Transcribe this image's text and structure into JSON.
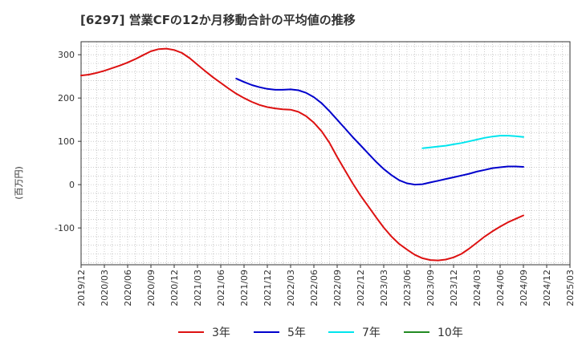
{
  "chart_data": {
    "type": "line",
    "title": "[6297]  営業CFの12か月移動合計の平均値の推移",
    "ylabel": "(百万円)",
    "xlabel": "",
    "ylim": [
      -185,
      330
    ],
    "yticks": [
      -100,
      0,
      100,
      200,
      300
    ],
    "xticks": [
      "2019/12",
      "2020/03",
      "2020/06",
      "2020/09",
      "2020/12",
      "2021/03",
      "2021/06",
      "2021/09",
      "2021/12",
      "2022/03",
      "2022/06",
      "2022/09",
      "2022/12",
      "2023/03",
      "2023/06",
      "2023/09",
      "2023/12",
      "2024/03",
      "2024/06",
      "2024/09",
      "2024/12",
      "2025/03"
    ],
    "grid": true,
    "legend_position": "bottom",
    "series": [
      {
        "name": "3年",
        "color": "#dd1111",
        "points": [
          [
            "2019/12",
            252
          ],
          [
            "2020/01",
            254
          ],
          [
            "2020/02",
            258
          ],
          [
            "2020/03",
            263
          ],
          [
            "2020/04",
            269
          ],
          [
            "2020/05",
            275
          ],
          [
            "2020/06",
            282
          ],
          [
            "2020/07",
            290
          ],
          [
            "2020/08",
            299
          ],
          [
            "2020/09",
            308
          ],
          [
            "2020/10",
            313
          ],
          [
            "2020/11",
            314
          ],
          [
            "2020/12",
            311
          ],
          [
            "2021/01",
            304
          ],
          [
            "2021/02",
            292
          ],
          [
            "2021/03",
            277
          ],
          [
            "2021/04",
            262
          ],
          [
            "2021/05",
            248
          ],
          [
            "2021/06",
            235
          ],
          [
            "2021/07",
            222
          ],
          [
            "2021/08",
            210
          ],
          [
            "2021/09",
            200
          ],
          [
            "2021/10",
            191
          ],
          [
            "2021/11",
            184
          ],
          [
            "2021/12",
            179
          ],
          [
            "2022/01",
            176
          ],
          [
            "2022/02",
            174
          ],
          [
            "2022/03",
            173
          ],
          [
            "2022/04",
            168
          ],
          [
            "2022/05",
            158
          ],
          [
            "2022/06",
            143
          ],
          [
            "2022/07",
            123
          ],
          [
            "2022/08",
            97
          ],
          [
            "2022/09",
            64
          ],
          [
            "2022/10",
            33
          ],
          [
            "2022/11",
            3
          ],
          [
            "2022/12",
            -25
          ],
          [
            "2023/01",
            -50
          ],
          [
            "2023/02",
            -75
          ],
          [
            "2023/03",
            -99
          ],
          [
            "2023/04",
            -120
          ],
          [
            "2023/05",
            -137
          ],
          [
            "2023/06",
            -150
          ],
          [
            "2023/07",
            -162
          ],
          [
            "2023/08",
            -170
          ],
          [
            "2023/09",
            -174
          ],
          [
            "2023/10",
            -175
          ],
          [
            "2023/11",
            -173
          ],
          [
            "2023/12",
            -168
          ],
          [
            "2024/01",
            -160
          ],
          [
            "2024/02",
            -148
          ],
          [
            "2024/03",
            -134
          ],
          [
            "2024/04",
            -120
          ],
          [
            "2024/05",
            -108
          ],
          [
            "2024/06",
            -97
          ],
          [
            "2024/07",
            -87
          ],
          [
            "2024/08",
            -79
          ],
          [
            "2024/09",
            -71
          ]
        ]
      },
      {
        "name": "5年",
        "color": "#0000cc",
        "points": [
          [
            "2021/08",
            245
          ],
          [
            "2021/09",
            237
          ],
          [
            "2021/10",
            230
          ],
          [
            "2021/11",
            225
          ],
          [
            "2021/12",
            221
          ],
          [
            "2022/01",
            219
          ],
          [
            "2022/02",
            219
          ],
          [
            "2022/03",
            220
          ],
          [
            "2022/04",
            218
          ],
          [
            "2022/05",
            212
          ],
          [
            "2022/06",
            202
          ],
          [
            "2022/07",
            188
          ],
          [
            "2022/08",
            170
          ],
          [
            "2022/09",
            150
          ],
          [
            "2022/10",
            130
          ],
          [
            "2022/11",
            110
          ],
          [
            "2022/12",
            91
          ],
          [
            "2023/01",
            72
          ],
          [
            "2023/02",
            53
          ],
          [
            "2023/03",
            36
          ],
          [
            "2023/04",
            22
          ],
          [
            "2023/05",
            10
          ],
          [
            "2023/06",
            3
          ],
          [
            "2023/07",
            0
          ],
          [
            "2023/08",
            1
          ],
          [
            "2023/09",
            5
          ],
          [
            "2023/10",
            9
          ],
          [
            "2023/11",
            13
          ],
          [
            "2023/12",
            17
          ],
          [
            "2024/01",
            21
          ],
          [
            "2024/02",
            25
          ],
          [
            "2024/03",
            30
          ],
          [
            "2024/04",
            34
          ],
          [
            "2024/05",
            38
          ],
          [
            "2024/06",
            40
          ],
          [
            "2024/07",
            42
          ],
          [
            "2024/08",
            42
          ],
          [
            "2024/09",
            41
          ]
        ]
      },
      {
        "name": "7年",
        "color": "#00e5ee",
        "points": [
          [
            "2023/08",
            84
          ],
          [
            "2023/09",
            86
          ],
          [
            "2023/10",
            88
          ],
          [
            "2023/11",
            90
          ],
          [
            "2023/12",
            93
          ],
          [
            "2024/01",
            96
          ],
          [
            "2024/02",
            100
          ],
          [
            "2024/03",
            104
          ],
          [
            "2024/04",
            108
          ],
          [
            "2024/05",
            111
          ],
          [
            "2024/06",
            113
          ],
          [
            "2024/07",
            113
          ],
          [
            "2024/08",
            112
          ],
          [
            "2024/09",
            110
          ]
        ]
      },
      {
        "name": "10年",
        "color": "#228b22",
        "points": []
      }
    ]
  }
}
